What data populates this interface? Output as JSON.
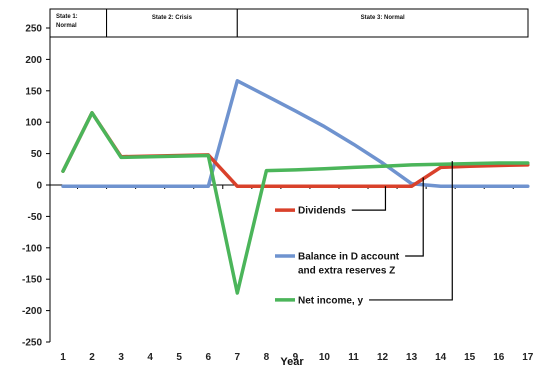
{
  "chart_data": {
    "type": "line",
    "title": "",
    "xlabel": "Year",
    "ylabel": "",
    "ylim": [
      -250,
      250
    ],
    "yticks": [
      250,
      200,
      150,
      100,
      50,
      0,
      -50,
      -100,
      -150,
      -200,
      -250
    ],
    "x": [
      1,
      2,
      3,
      4,
      5,
      6,
      7,
      8,
      9,
      10,
      11,
      12,
      13,
      14,
      15,
      16,
      17
    ],
    "grid": false,
    "states": [
      {
        "label_line1": "State 1:",
        "label_line2": "Normal",
        "from": 0.5,
        "to": 2.5
      },
      {
        "label_line1": "State 2: Crisis",
        "label_line2": "",
        "from": 2.5,
        "to": 7.0
      },
      {
        "label_line1": "State 3: Normal",
        "label_line2": "",
        "from": 7.0,
        "to": 17.5
      }
    ],
    "series": [
      {
        "name": "Dividends",
        "color": "#d9412b",
        "points": [
          [
            1,
            22
          ],
          [
            2,
            115
          ],
          [
            3,
            45
          ],
          [
            4,
            46
          ],
          [
            5,
            47
          ],
          [
            6,
            48
          ],
          [
            7,
            -2
          ],
          [
            8,
            -2
          ],
          [
            9,
            -2
          ],
          [
            10,
            -2
          ],
          [
            11,
            -2
          ],
          [
            12,
            -2
          ],
          [
            13,
            -2
          ],
          [
            14,
            28
          ],
          [
            15,
            30
          ],
          [
            16,
            31
          ],
          [
            17,
            32
          ]
        ]
      },
      {
        "name": "Balance in D account",
        "name_line2": "and extra reserves Z",
        "color": "#6f93cf",
        "points": [
          [
            1,
            -2
          ],
          [
            2,
            -2
          ],
          [
            3,
            -2
          ],
          [
            4,
            -2
          ],
          [
            5,
            -2
          ],
          [
            6,
            -2
          ],
          [
            7,
            166
          ],
          [
            8,
            142
          ],
          [
            9,
            118
          ],
          [
            10,
            93
          ],
          [
            11,
            65
          ],
          [
            12,
            35
          ],
          [
            13,
            2
          ],
          [
            14,
            -2
          ],
          [
            15,
            -2
          ],
          [
            16,
            -2
          ],
          [
            17,
            -2
          ]
        ]
      },
      {
        "name": "Net income, y",
        "color": "#4bb55a",
        "points": [
          [
            1,
            22
          ],
          [
            2,
            115
          ],
          [
            3,
            44
          ],
          [
            4,
            45
          ],
          [
            5,
            46
          ],
          [
            6,
            47
          ],
          [
            7,
            -172
          ],
          [
            8,
            23
          ],
          [
            9,
            24
          ],
          [
            10,
            26
          ],
          [
            11,
            28
          ],
          [
            12,
            30
          ],
          [
            13,
            32
          ],
          [
            14,
            33
          ],
          [
            15,
            34
          ],
          [
            16,
            35
          ],
          [
            17,
            35
          ]
        ]
      }
    ],
    "legend": [
      {
        "series": 0,
        "pointer_x": 12.1,
        "pointer_y": -2,
        "label_y": -40
      },
      {
        "series": 1,
        "pointer_x": 13.4,
        "pointer_y": 12,
        "label_y": -113
      },
      {
        "series": 2,
        "pointer_x": 14.4,
        "pointer_y": 38,
        "label_y": -183
      }
    ]
  }
}
